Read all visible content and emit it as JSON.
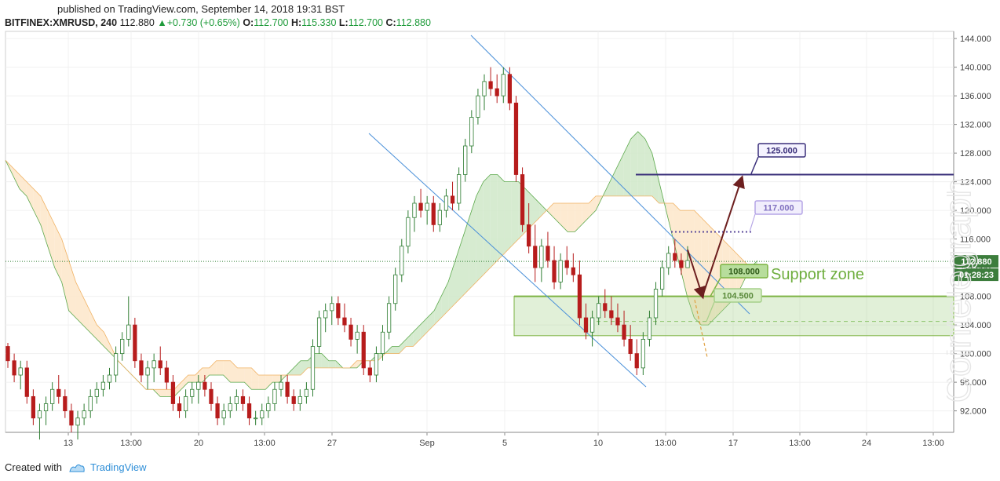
{
  "header": {
    "published": "published on TradingView.com, September 14, 2018 19:31 BST",
    "symbol": "BITFINEX:XMRUSD, 240",
    "last": "112.880",
    "change": "▲+0.730 (+0.65%)",
    "ohlc_o_label": "O:",
    "ohlc_o": "112.700",
    "ohlc_h_label": "H:",
    "ohlc_h": "115.330",
    "ohlc_l_label": "L:",
    "ohlc_l": "112.700",
    "ohlc_c_label": "C:",
    "ohlc_c": "112.880"
  },
  "footer": {
    "created_with": "Created with",
    "brand": "TradingView"
  },
  "watermark": "Cointelegraph",
  "colors": {
    "up_candle": "#2e7d32",
    "down_candle": "#b71c1c",
    "cloud_bull": "#cfe8c8",
    "cloud_bear": "#fde6c9",
    "channel": "#4a90d9",
    "support": "#7cb342",
    "target": "#3a2f7a",
    "arrow": "#6d1f1f"
  },
  "chart_data": {
    "type": "candlestick",
    "title": "",
    "xlabel": "",
    "ylabel": "",
    "ylim": [
      89,
      145
    ],
    "y_ticks": [
      "144.000",
      "140.000",
      "136.000",
      "132.000",
      "128.000",
      "124.000",
      "120.000",
      "116.000",
      "112.000",
      "108.000",
      "104.000",
      "100.000",
      "96.000",
      "92.000"
    ],
    "x_ticks": [
      "13",
      "13:00",
      "20",
      "13:00",
      "27",
      "Sep",
      "5",
      "10",
      "13:00",
      "17",
      "13:00",
      "24",
      "13:00"
    ],
    "last_price_label": "112.880",
    "countdown_label": "01:28:23",
    "annotations": {
      "target_high": "125.000",
      "target_mid": "117.000",
      "support_top": "108.000",
      "support_bottom": "104.500",
      "support_zone_text": "Support zone"
    },
    "levels": {
      "target_high": 125.0,
      "target_mid": 117.0,
      "support_top": 108.0,
      "support_bottom": 104.5,
      "last": 112.88
    },
    "candles": [
      [
        101,
        101.5,
        98,
        99
      ],
      [
        99,
        100,
        96,
        97
      ],
      [
        97,
        99,
        95,
        98
      ],
      [
        98,
        99,
        93,
        94
      ],
      [
        94,
        95,
        90,
        91
      ],
      [
        91,
        93,
        88,
        92
      ],
      [
        92,
        94,
        90,
        93
      ],
      [
        93,
        96,
        92,
        95
      ],
      [
        95,
        97,
        93,
        94
      ],
      [
        94,
        95,
        91,
        92
      ],
      [
        92,
        93,
        89,
        90
      ],
      [
        90,
        92,
        88,
        91
      ],
      [
        91,
        93,
        90,
        92
      ],
      [
        92,
        95,
        91,
        94
      ],
      [
        94,
        96,
        93,
        95
      ],
      [
        95,
        97,
        94,
        96
      ],
      [
        96,
        98,
        95,
        97
      ],
      [
        97,
        101,
        96,
        100
      ],
      [
        100,
        103,
        99,
        102
      ],
      [
        102,
        108,
        101,
        104
      ],
      [
        104,
        105,
        98,
        99
      ],
      [
        99,
        100,
        96,
        97
      ],
      [
        97,
        99,
        95,
        98
      ],
      [
        98,
        100,
        96,
        99
      ],
      [
        99,
        101,
        97,
        98
      ],
      [
        98,
        99,
        95,
        96
      ],
      [
        96,
        97,
        92,
        93
      ],
      [
        93,
        94,
        91,
        92
      ],
      [
        92,
        95,
        91,
        94
      ],
      [
        94,
        96,
        93,
        95
      ],
      [
        95,
        97,
        93,
        96
      ],
      [
        96,
        97,
        94,
        95
      ],
      [
        95,
        96,
        92,
        93
      ],
      [
        93,
        94,
        90,
        91
      ],
      [
        91,
        93,
        90,
        92
      ],
      [
        92,
        94,
        91,
        93
      ],
      [
        93,
        95,
        92,
        94
      ],
      [
        94,
        95,
        92,
        93
      ],
      [
        93,
        94,
        90,
        91
      ],
      [
        91,
        92,
        90,
        91
      ],
      [
        91,
        93,
        90,
        92
      ],
      [
        92,
        94,
        91,
        93
      ],
      [
        93,
        96,
        92,
        95
      ],
      [
        95,
        97,
        94,
        96
      ],
      [
        96,
        97,
        93,
        94
      ],
      [
        94,
        95,
        92,
        93
      ],
      [
        93,
        95,
        92,
        94
      ],
      [
        94,
        96,
        93,
        95
      ],
      [
        95,
        102,
        94,
        101
      ],
      [
        101,
        106,
        100,
        105
      ],
      [
        105,
        107,
        103,
        106
      ],
      [
        106,
        108,
        104,
        107
      ],
      [
        107,
        108,
        104,
        105
      ],
      [
        105,
        107,
        103,
        104
      ],
      [
        104,
        105,
        101,
        102
      ],
      [
        102,
        104,
        100,
        103
      ],
      [
        103,
        104,
        97,
        98
      ],
      [
        98,
        99,
        96,
        97
      ],
      [
        97,
        101,
        96,
        100
      ],
      [
        100,
        104,
        99,
        103
      ],
      [
        103,
        108,
        102,
        107
      ],
      [
        107,
        112,
        106,
        111
      ],
      [
        111,
        116,
        110,
        115
      ],
      [
        115,
        120,
        114,
        119
      ],
      [
        119,
        122,
        117,
        121
      ],
      [
        121,
        123,
        119,
        120
      ],
      [
        120,
        122,
        118,
        121
      ],
      [
        121,
        122,
        117,
        118
      ],
      [
        118,
        121,
        117,
        120
      ],
      [
        120,
        123,
        119,
        122
      ],
      [
        122,
        124,
        120,
        121
      ],
      [
        121,
        126,
        120,
        125
      ],
      [
        125,
        130,
        124,
        129
      ],
      [
        129,
        134,
        128,
        133
      ],
      [
        133,
        137,
        132,
        136
      ],
      [
        136,
        139,
        134,
        138
      ],
      [
        138,
        140,
        136,
        137
      ],
      [
        137,
        139,
        135,
        136
      ],
      [
        136,
        140,
        135,
        139
      ],
      [
        139,
        140,
        134,
        135
      ],
      [
        135,
        136,
        124,
        125
      ],
      [
        125,
        126,
        117,
        118
      ],
      [
        118,
        121,
        114,
        115
      ],
      [
        115,
        118,
        110,
        112
      ],
      [
        112,
        116,
        110,
        115
      ],
      [
        115,
        117,
        112,
        113
      ],
      [
        113,
        115,
        109,
        110
      ],
      [
        110,
        114,
        109,
        113
      ],
      [
        113,
        115,
        111,
        112
      ],
      [
        112,
        114,
        110,
        111
      ],
      [
        111,
        113,
        104,
        105
      ],
      [
        105,
        107,
        102,
        103
      ],
      [
        103,
        106,
        101,
        105
      ],
      [
        105,
        108,
        104,
        107
      ],
      [
        107,
        109,
        105,
        106
      ],
      [
        106,
        108,
        104,
        105
      ],
      [
        105,
        107,
        103,
        104
      ],
      [
        104,
        106,
        101,
        102
      ],
      [
        102,
        104,
        99,
        100
      ],
      [
        100,
        102,
        97,
        98
      ],
      [
        98,
        103,
        97,
        102
      ],
      [
        102,
        106,
        101,
        105
      ],
      [
        105,
        110,
        104,
        109
      ],
      [
        109,
        113,
        108,
        112
      ],
      [
        112,
        115,
        111,
        114
      ],
      [
        114,
        116,
        112,
        113
      ],
      [
        113,
        114,
        111,
        112
      ],
      [
        112,
        115,
        112,
        113
      ]
    ],
    "ichimoku_cloud": {
      "span_a": [
        127,
        125,
        123,
        122,
        120,
        118,
        115,
        112,
        110,
        106,
        105,
        104,
        103,
        102,
        101,
        100,
        99,
        98,
        97,
        96,
        95,
        95,
        94,
        94,
        94,
        95,
        96,
        96,
        96,
        97,
        97,
        97,
        96,
        96,
        96,
        95,
        95,
        95,
        96,
        96,
        97,
        98,
        99,
        99,
        100,
        100,
        99,
        99,
        98,
        98,
        98,
        99,
        99,
        100,
        100,
        101,
        101,
        102,
        103,
        104,
        105,
        106,
        108,
        110,
        113,
        116,
        119,
        122,
        124,
        125,
        125,
        124,
        124,
        124,
        123,
        122,
        121,
        120,
        119,
        118,
        117,
        117,
        118,
        119,
        120,
        122,
        124,
        126,
        128,
        130,
        131,
        130,
        128,
        124,
        120,
        116,
        112,
        108,
        105,
        104,
        104,
        105,
        106,
        107,
        108,
        110,
        112,
        113
      ],
      "span_b": [
        127,
        126,
        125,
        124,
        123,
        122,
        120,
        118,
        116,
        113,
        110,
        108,
        106,
        104,
        103,
        101,
        99,
        98,
        97,
        96,
        95,
        95,
        95,
        95,
        95,
        96,
        97,
        97,
        98,
        98,
        99,
        99,
        99,
        98,
        98,
        98,
        97,
        97,
        97,
        97,
        97,
        97,
        97,
        98,
        98,
        98,
        98,
        98,
        98,
        98,
        99,
        99,
        99,
        99,
        100,
        100,
        100,
        101,
        101,
        102,
        103,
        104,
        105,
        106,
        107,
        108,
        109,
        110,
        111,
        112,
        113,
        114,
        115,
        116,
        117,
        118,
        119,
        120,
        121,
        121,
        121,
        121,
        121,
        121,
        122,
        122,
        122,
        122,
        122,
        122,
        122,
        122,
        122,
        121,
        121,
        121,
        120,
        120,
        120,
        119,
        118,
        117,
        116,
        115,
        114,
        113,
        112,
        112
      ]
    },
    "channel": {
      "upper": [
        [
          600,
          45
        ],
        [
          955,
          400
        ]
      ],
      "lower": [
        [
          470,
          170
        ],
        [
          823,
          493
        ]
      ]
    }
  }
}
